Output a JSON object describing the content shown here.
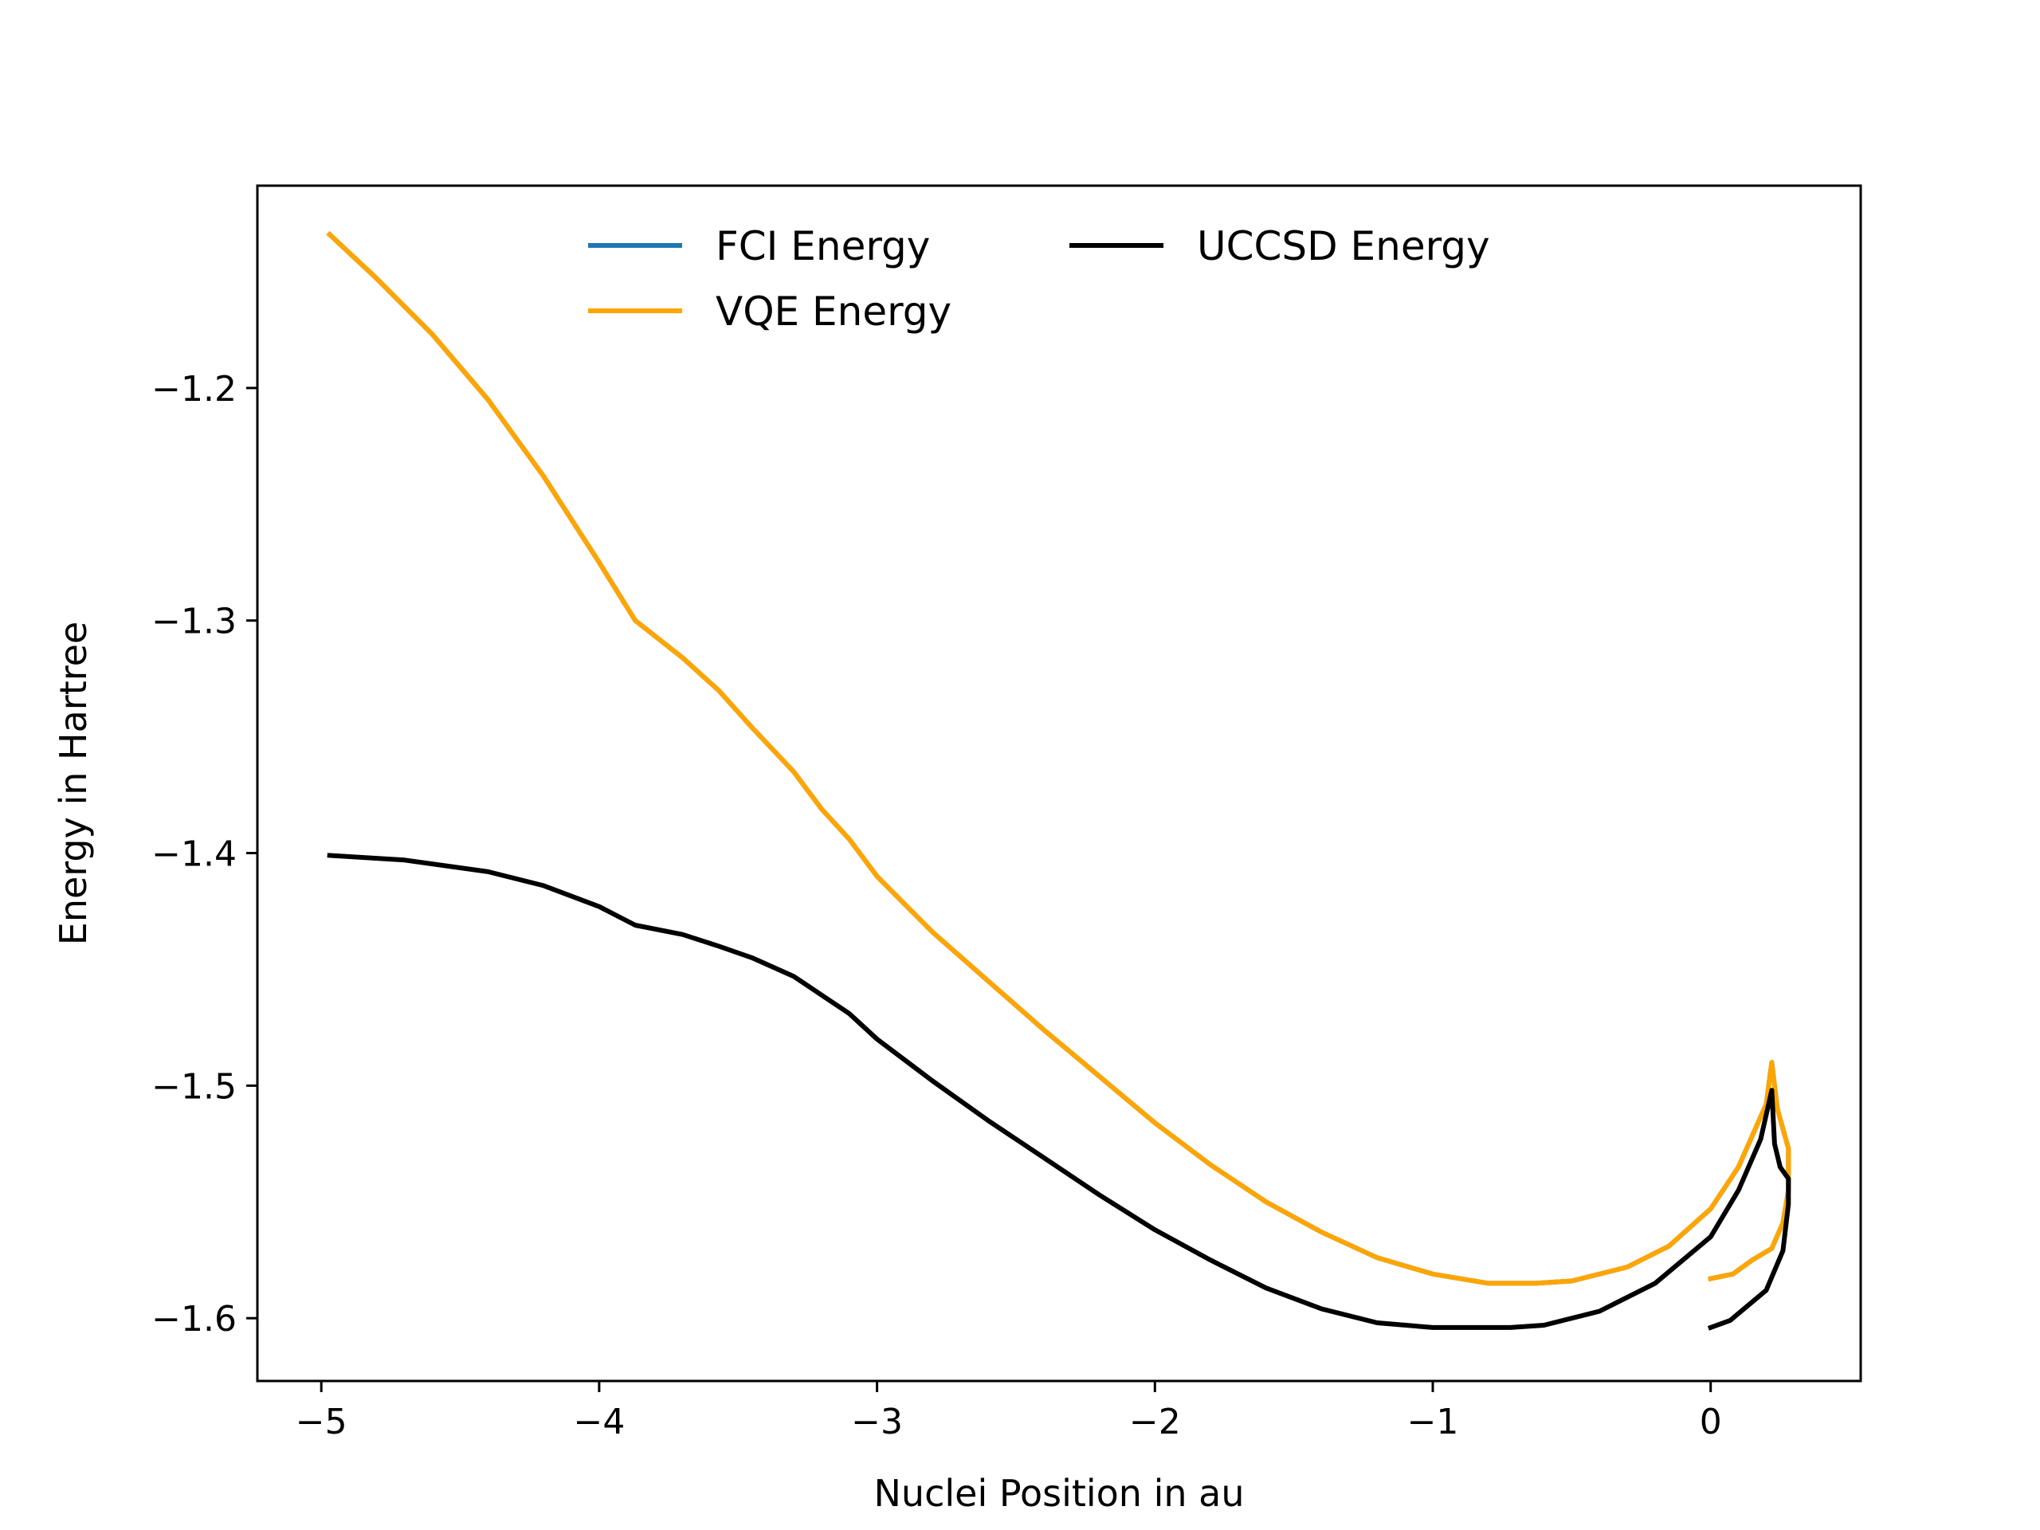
{
  "chart_data": {
    "type": "line",
    "title": "",
    "xlabel": "Nuclei Position in au",
    "ylabel": "Energy in Hartree",
    "xlim": [
      -5.23,
      0.54
    ],
    "ylim": [
      -1.627,
      -1.113
    ],
    "xticks": [
      {
        "value": -5,
        "label": "−5"
      },
      {
        "value": -4,
        "label": "−4"
      },
      {
        "value": -3,
        "label": "−3"
      },
      {
        "value": -2,
        "label": "−2"
      },
      {
        "value": -1,
        "label": "−1"
      },
      {
        "value": 0,
        "label": "0"
      }
    ],
    "yticks": [
      {
        "value": -1.2,
        "label": "−1.2"
      },
      {
        "value": -1.3,
        "label": "−1.3"
      },
      {
        "value": -1.4,
        "label": "−1.4"
      },
      {
        "value": -1.5,
        "label": "−1.5"
      },
      {
        "value": -1.6,
        "label": "−1.6"
      }
    ],
    "grid": false,
    "legend": {
      "placement": "upper center",
      "columns": 2
    },
    "series": [
      {
        "name": "FCI Energy",
        "color": "#1f77b4",
        "x": [
          -4.97,
          -4.8,
          -4.6,
          -4.4,
          -4.2,
          -4.0,
          -3.87,
          -3.7,
          -3.57,
          -3.45,
          -3.3,
          -3.2,
          -3.1,
          -3.0,
          -2.8,
          -2.6,
          -2.4,
          -2.2,
          -2.0,
          -1.8,
          -1.6,
          -1.4,
          -1.2,
          -1.0,
          -0.8,
          -0.63,
          -0.5,
          -0.3,
          -0.15,
          0.0,
          0.1,
          0.2,
          0.22,
          0.24,
          0.28,
          0.28,
          0.26,
          0.22,
          0.15,
          0.08,
          0.0
        ],
        "y": [
          -1.134,
          -1.153,
          -1.177,
          -1.205,
          -1.238,
          -1.275,
          -1.3,
          -1.316,
          -1.33,
          -1.346,
          -1.365,
          -1.381,
          -1.394,
          -1.41,
          -1.434,
          -1.455,
          -1.476,
          -1.496,
          -1.516,
          -1.534,
          -1.55,
          -1.563,
          -1.574,
          -1.581,
          -1.585,
          -1.585,
          -1.584,
          -1.578,
          -1.569,
          -1.553,
          -1.535,
          -1.508,
          -1.49,
          -1.51,
          -1.527,
          -1.545,
          -1.559,
          -1.57,
          -1.575,
          -1.581,
          -1.583
        ]
      },
      {
        "name": "VQE Energy",
        "color": "#ffa500",
        "x": [
          -4.97,
          -4.8,
          -4.6,
          -4.4,
          -4.2,
          -4.0,
          -3.87,
          -3.7,
          -3.57,
          -3.45,
          -3.3,
          -3.2,
          -3.1,
          -3.0,
          -2.8,
          -2.6,
          -2.4,
          -2.2,
          -2.0,
          -1.8,
          -1.6,
          -1.4,
          -1.2,
          -1.0,
          -0.8,
          -0.63,
          -0.5,
          -0.3,
          -0.15,
          0.0,
          0.1,
          0.2,
          0.22,
          0.24,
          0.28,
          0.28,
          0.26,
          0.22,
          0.15,
          0.08,
          0.0
        ],
        "y": [
          -1.134,
          -1.153,
          -1.177,
          -1.205,
          -1.238,
          -1.275,
          -1.3,
          -1.316,
          -1.33,
          -1.346,
          -1.365,
          -1.381,
          -1.394,
          -1.41,
          -1.434,
          -1.455,
          -1.476,
          -1.496,
          -1.516,
          -1.534,
          -1.55,
          -1.563,
          -1.574,
          -1.581,
          -1.585,
          -1.585,
          -1.584,
          -1.578,
          -1.569,
          -1.553,
          -1.535,
          -1.508,
          -1.49,
          -1.51,
          -1.527,
          -1.545,
          -1.559,
          -1.57,
          -1.575,
          -1.581,
          -1.583
        ]
      },
      {
        "name": "UCCSD Energy",
        "color": "#000000",
        "x": [
          -4.97,
          -4.7,
          -4.4,
          -4.2,
          -4.0,
          -3.87,
          -3.7,
          -3.57,
          -3.45,
          -3.3,
          -3.2,
          -3.1,
          -3.0,
          -2.8,
          -2.6,
          -2.4,
          -2.2,
          -2.0,
          -1.8,
          -1.6,
          -1.4,
          -1.2,
          -1.0,
          -0.85,
          -0.72,
          -0.6,
          -0.4,
          -0.2,
          0.0,
          0.1,
          0.18,
          0.22,
          0.23,
          0.25,
          0.28,
          0.28,
          0.26,
          0.2,
          0.13,
          0.07,
          0.0
        ],
        "y": [
          -1.401,
          -1.403,
          -1.408,
          -1.414,
          -1.423,
          -1.431,
          -1.435,
          -1.44,
          -1.445,
          -1.453,
          -1.461,
          -1.469,
          -1.48,
          -1.498,
          -1.515,
          -1.531,
          -1.547,
          -1.562,
          -1.575,
          -1.587,
          -1.596,
          -1.602,
          -1.604,
          -1.604,
          -1.604,
          -1.603,
          -1.597,
          -1.585,
          -1.565,
          -1.545,
          -1.523,
          -1.502,
          -1.525,
          -1.535,
          -1.54,
          -1.551,
          -1.571,
          -1.588,
          -1.595,
          -1.601,
          -1.604
        ]
      }
    ]
  }
}
